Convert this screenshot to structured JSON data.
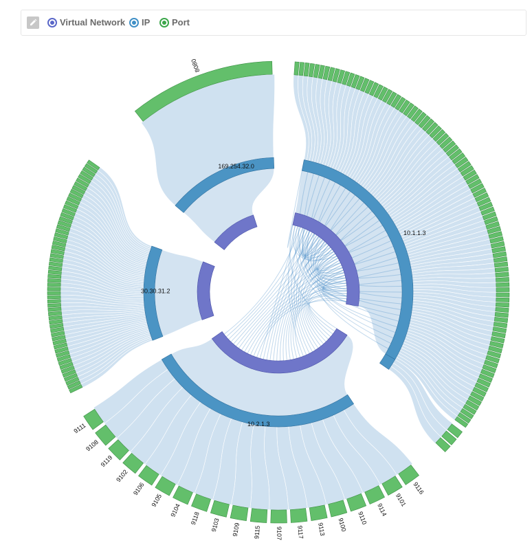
{
  "toolbar": {
    "edit_icon": "pencil-icon",
    "legend": [
      {
        "label": "Virtual Network",
        "color": "#5a67c8"
      },
      {
        "label": "IP",
        "color": "#3f8fc6"
      },
      {
        "label": "Port",
        "color": "#3ba64a"
      }
    ]
  },
  "colors": {
    "virtual_network": "#6f76c9",
    "ip": "#4b94c4",
    "port": "#63bf6b",
    "ribbon": "#cfe1f0",
    "ribbon_line": "#4d8fc9"
  },
  "groups": [
    {
      "ip": "169.254.32.0",
      "vn_arc": [
        -52,
        -18
      ],
      "ip_arc": [
        -50,
        -2
      ],
      "port_arc": [
        -39,
        -1
      ],
      "ports": [
        "8080"
      ],
      "port_label_rotate": true
    },
    {
      "ip": "30.30.31.2",
      "vn_arc": [
        -110,
        -68
      ],
      "ip_arc": [
        -111,
        -70
      ],
      "port_arc": [
        -116,
        -55
      ],
      "ports": [],
      "port_count": 58
    },
    {
      "ip": "10.1.1.3",
      "vn_arc": [
        12,
        100
      ],
      "ip_arc": [
        11,
        120
      ],
      "port_arc": [
        4,
        126
      ],
      "ports": [],
      "port_count": 95
    },
    {
      "ip": "",
      "vn_arc": [],
      "ip_arc": [
        120,
        125
      ],
      "port_arc": [
        127,
        134
      ],
      "ports": [],
      "port_count": 3
    },
    {
      "ip": "10.2.1.3",
      "vn_arc": [
        122,
        235
      ],
      "ip_arc": [
        146,
        240
      ],
      "port_arc": [
        142,
        238
      ],
      "ports": [
        "9116",
        "9101",
        "9114",
        "9110",
        "9100",
        "9113",
        "9117",
        "9107",
        "9115",
        "9109",
        "9103",
        "9118",
        "9104",
        "9105",
        "9106",
        "9102",
        "9119",
        "9108",
        "9111"
      ]
    }
  ]
}
